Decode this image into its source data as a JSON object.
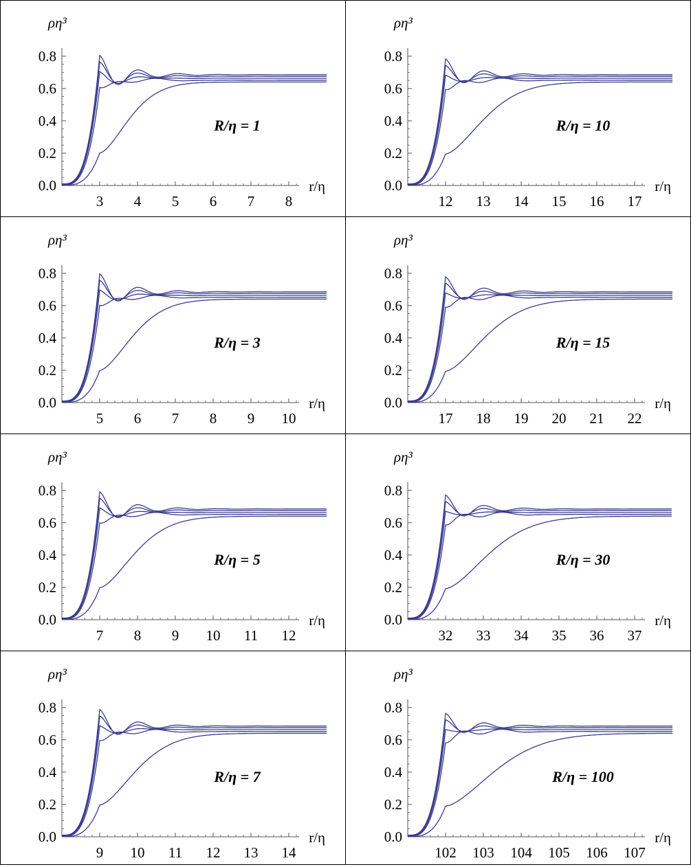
{
  "chart_data": [
    {
      "type": "line",
      "ylabel": "ρη³",
      "xlabel": "r/η",
      "annotation": "R/η = 1",
      "R": 1,
      "xlim": [
        2,
        9
      ],
      "ylim": [
        0,
        0.85
      ],
      "xticks": [
        "3",
        "4",
        "5",
        "6",
        "7",
        "8"
      ],
      "yticks": [
        "0.0",
        "0.2",
        "0.4",
        "0.6",
        "0.8"
      ]
    },
    {
      "type": "line",
      "ylabel": "ρη³",
      "xlabel": "r/η",
      "annotation": "R/η = 10",
      "R": 10,
      "xlim": [
        11,
        18
      ],
      "ylim": [
        0,
        0.85
      ],
      "xticks": [
        "12",
        "13",
        "14",
        "15",
        "16",
        "17"
      ],
      "yticks": [
        "0.0",
        "0.2",
        "0.4",
        "0.6",
        "0.8"
      ]
    },
    {
      "type": "line",
      "ylabel": "ρη³",
      "xlabel": "r/η",
      "annotation": "R/η = 3",
      "R": 3,
      "xlim": [
        4,
        11
      ],
      "ylim": [
        0,
        0.85
      ],
      "xticks": [
        "5",
        "6",
        "7",
        "8",
        "9",
        "10"
      ],
      "yticks": [
        "0.0",
        "0.2",
        "0.4",
        "0.6",
        "0.8"
      ]
    },
    {
      "type": "line",
      "ylabel": "ρη³",
      "xlabel": "r/η",
      "annotation": "R/η = 15",
      "R": 15,
      "xlim": [
        16,
        23
      ],
      "ylim": [
        0,
        0.85
      ],
      "xticks": [
        "17",
        "18",
        "19",
        "20",
        "21",
        "22"
      ],
      "yticks": [
        "0.0",
        "0.2",
        "0.4",
        "0.6",
        "0.8"
      ]
    },
    {
      "type": "line",
      "ylabel": "ρη³",
      "xlabel": "r/η",
      "annotation": "R/η = 5",
      "R": 5,
      "xlim": [
        6,
        13
      ],
      "ylim": [
        0,
        0.85
      ],
      "xticks": [
        "7",
        "8",
        "9",
        "10",
        "11",
        "12"
      ],
      "yticks": [
        "0.0",
        "0.2",
        "0.4",
        "0.6",
        "0.8"
      ]
    },
    {
      "type": "line",
      "ylabel": "ρη³",
      "xlabel": "r/η",
      "annotation": "R/η = 30",
      "R": 30,
      "xlim": [
        31,
        38
      ],
      "ylim": [
        0,
        0.85
      ],
      "xticks": [
        "32",
        "33",
        "34",
        "35",
        "36",
        "37"
      ],
      "yticks": [
        "0.0",
        "0.2",
        "0.4",
        "0.6",
        "0.8"
      ]
    },
    {
      "type": "line",
      "ylabel": "ρη³",
      "xlabel": "r/η",
      "annotation": "R/η = 7",
      "R": 7,
      "xlim": [
        8,
        15
      ],
      "ylim": [
        0,
        0.85
      ],
      "xticks": [
        "9",
        "10",
        "11",
        "12",
        "13",
        "14"
      ],
      "yticks": [
        "0.0",
        "0.2",
        "0.4",
        "0.6",
        "0.8"
      ]
    },
    {
      "type": "line",
      "ylabel": "ρη³",
      "xlabel": "r/η",
      "annotation": "R/η = 100",
      "R": 100,
      "xlim": [
        101,
        108
      ],
      "ylim": [
        0,
        0.85
      ],
      "xticks": [
        "102",
        "103",
        "104",
        "105",
        "106",
        "107"
      ],
      "yticks": [
        "0.0",
        "0.2",
        "0.4",
        "0.6",
        "0.8"
      ]
    }
  ],
  "colors": {
    "curve": "#3b3b8f",
    "axis": "#555555",
    "border": "#000000"
  }
}
